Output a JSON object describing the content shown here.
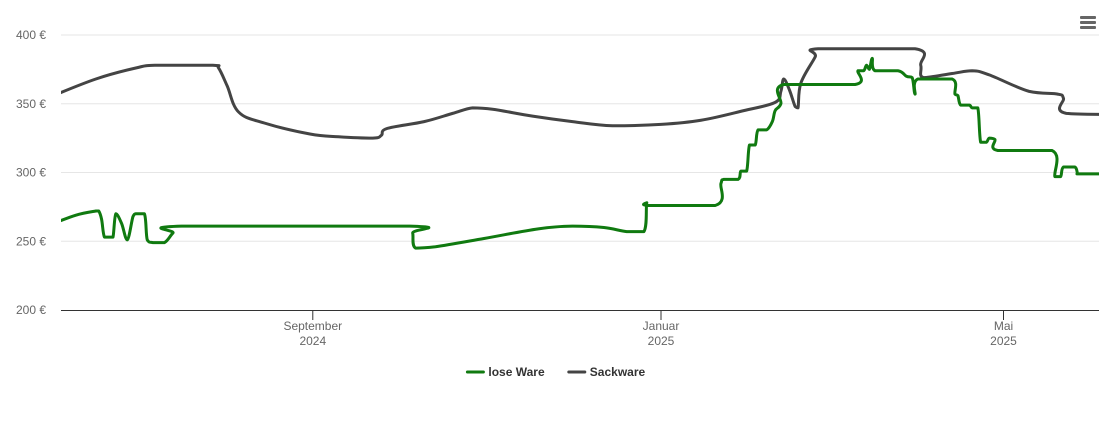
{
  "chart_data": {
    "type": "line",
    "title": "",
    "xlabel": "",
    "ylabel": "",
    "currency": "€",
    "ylim": [
      200,
      400
    ],
    "yticks": [
      200,
      250,
      300,
      350,
      400
    ],
    "ytick_labels": [
      "200 €",
      "250 €",
      "300 €",
      "350 €",
      "400 €"
    ],
    "xlim": [
      "2024-06-01",
      "2025-06-01"
    ],
    "xticks": [
      {
        "date": "2024-09-01",
        "label": "September",
        "year": "2024"
      },
      {
        "date": "2025-01-01",
        "label": "Januar",
        "year": "2025"
      },
      {
        "date": "2025-05-01",
        "label": "Mai",
        "year": "2025"
      }
    ],
    "grid": "horizontal",
    "legend_position": "bottom-center",
    "series": [
      {
        "name": "lose Ware",
        "color": "#107a10",
        "points": [
          [
            "2024-06-01",
            262
          ],
          [
            "2024-06-10",
            269
          ],
          [
            "2024-06-17",
            272
          ],
          [
            "2024-06-18",
            272
          ],
          [
            "2024-06-19",
            266
          ],
          [
            "2024-06-20",
            253
          ],
          [
            "2024-06-22",
            253
          ],
          [
            "2024-06-23",
            253
          ],
          [
            "2024-06-24",
            270
          ],
          [
            "2024-06-26",
            263
          ],
          [
            "2024-06-28",
            251
          ],
          [
            "2024-06-30",
            268
          ],
          [
            "2024-07-01",
            270
          ],
          [
            "2024-07-04",
            270
          ],
          [
            "2024-07-05",
            251
          ],
          [
            "2024-07-07",
            249
          ],
          [
            "2024-07-11",
            249
          ],
          [
            "2024-07-14",
            256
          ],
          [
            "2024-07-17",
            261
          ],
          [
            "2024-10-05",
            261
          ],
          [
            "2024-10-06",
            256
          ],
          [
            "2024-10-07",
            245
          ],
          [
            "2024-10-14",
            246
          ],
          [
            "2024-10-31",
            252
          ],
          [
            "2024-11-19",
            259
          ],
          [
            "2024-12-01",
            261
          ],
          [
            "2024-12-12",
            260
          ],
          [
            "2024-12-20",
            257
          ],
          [
            "2024-12-26",
            257
          ],
          [
            "2024-12-27",
            278
          ],
          [
            "2024-12-28",
            276
          ],
          [
            "2025-01-20",
            276
          ],
          [
            "2025-01-22",
            292
          ],
          [
            "2025-01-23",
            295
          ],
          [
            "2025-01-28",
            295
          ],
          [
            "2025-01-29",
            301
          ],
          [
            "2025-01-31",
            301
          ],
          [
            "2025-02-01",
            320
          ],
          [
            "2025-02-03",
            320
          ],
          [
            "2025-02-04",
            331
          ],
          [
            "2025-02-07",
            331
          ],
          [
            "2025-02-09",
            337
          ],
          [
            "2025-02-10",
            345
          ],
          [
            "2025-02-12",
            350
          ],
          [
            "2025-02-13",
            364
          ],
          [
            "2025-03-10",
            364
          ],
          [
            "2025-03-11",
            374
          ],
          [
            "2025-03-13",
            374
          ],
          [
            "2025-03-14",
            378
          ],
          [
            "2025-03-15",
            375
          ],
          [
            "2025-03-16",
            383
          ],
          [
            "2025-03-17",
            374
          ],
          [
            "2025-03-25",
            374
          ],
          [
            "2025-03-28",
            370
          ],
          [
            "2025-03-30",
            369
          ],
          [
            "2025-03-31",
            357
          ],
          [
            "2025-04-01",
            368
          ],
          [
            "2025-04-13",
            368
          ],
          [
            "2025-04-14",
            357
          ],
          [
            "2025-04-15",
            356
          ],
          [
            "2025-04-16",
            349
          ],
          [
            "2025-04-19",
            349
          ],
          [
            "2025-04-20",
            347
          ],
          [
            "2025-04-22",
            347
          ],
          [
            "2025-04-23",
            322
          ],
          [
            "2025-04-25",
            322
          ],
          [
            "2025-04-26",
            325
          ],
          [
            "2025-04-28",
            324
          ],
          [
            "2025-04-29",
            316
          ],
          [
            "2025-05-18",
            316
          ],
          [
            "2025-05-19",
            297
          ],
          [
            "2025-05-21",
            297
          ],
          [
            "2025-05-22",
            304
          ],
          [
            "2025-05-26",
            304
          ],
          [
            "2025-05-27",
            299
          ],
          [
            "2025-05-28",
            299
          ],
          [
            "2025-06-09",
            299
          ],
          [
            "2025-06-10",
            295
          ],
          [
            "2025-06-13",
            294
          ],
          [
            "2025-06-14",
            292
          ],
          [
            "2025-06-18",
            292
          ],
          [
            "2025-06-19",
            293
          ]
        ]
      },
      {
        "name": "Sackware",
        "color": "#444444",
        "points": [
          [
            "2024-06-01",
            355
          ],
          [
            "2024-06-17",
            368
          ],
          [
            "2024-07-01",
            376
          ],
          [
            "2024-07-08",
            378
          ],
          [
            "2024-07-28",
            378
          ],
          [
            "2024-07-30",
            376
          ],
          [
            "2024-08-02",
            363
          ],
          [
            "2024-08-06",
            344
          ],
          [
            "2024-08-15",
            336
          ],
          [
            "2024-08-31",
            328
          ],
          [
            "2024-09-10",
            326
          ],
          [
            "2024-09-22",
            325
          ],
          [
            "2024-09-25",
            327
          ],
          [
            "2024-09-27",
            332
          ],
          [
            "2024-10-10",
            337
          ],
          [
            "2024-10-20",
            343
          ],
          [
            "2024-10-27",
            347
          ],
          [
            "2024-11-03",
            346
          ],
          [
            "2024-11-17",
            341
          ],
          [
            "2024-12-01",
            337
          ],
          [
            "2024-12-15",
            334
          ],
          [
            "2025-01-01",
            335
          ],
          [
            "2025-01-15",
            338
          ],
          [
            "2025-01-30",
            345
          ],
          [
            "2025-02-10",
            351
          ],
          [
            "2025-02-12",
            359
          ],
          [
            "2025-02-13",
            368
          ],
          [
            "2025-02-15",
            360
          ],
          [
            "2025-02-17",
            348
          ],
          [
            "2025-02-18",
            347
          ],
          [
            "2025-02-19",
            365
          ],
          [
            "2025-02-24",
            384
          ],
          [
            "2025-02-25",
            390
          ],
          [
            "2025-03-31",
            390
          ],
          [
            "2025-04-02",
            378
          ],
          [
            "2025-04-03",
            369
          ],
          [
            "2025-04-13",
            372
          ],
          [
            "2025-04-20",
            374
          ],
          [
            "2025-04-26",
            371
          ],
          [
            "2025-05-10",
            359
          ],
          [
            "2025-05-20",
            357
          ],
          [
            "2025-05-22",
            354
          ],
          [
            "2025-05-23",
            343
          ],
          [
            "2025-06-19",
            342
          ]
        ]
      }
    ]
  }
}
